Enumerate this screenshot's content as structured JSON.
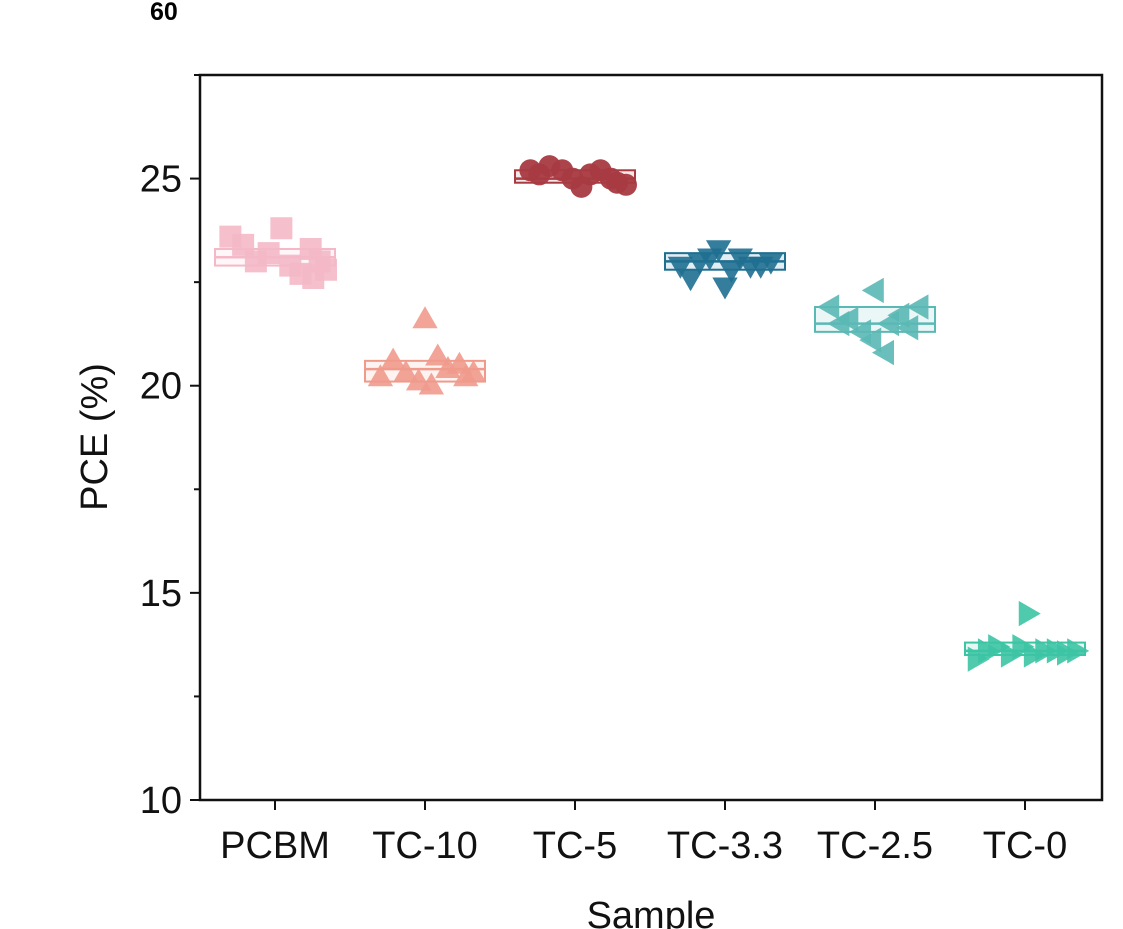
{
  "panel_label": "60",
  "chart_data": {
    "type": "scatter",
    "subtype": "box-with-points",
    "title": "",
    "xlabel": "Sample",
    "ylabel": "PCE (%)",
    "ylim": [
      10,
      27.5
    ],
    "yticks": [
      10,
      15,
      20,
      25
    ],
    "grid": false,
    "legend": "none",
    "categories": [
      "PCBM",
      "TC-10",
      "TC-5",
      "TC-3.3",
      "TC-2.5",
      "TC-0"
    ],
    "series": [
      {
        "category": "PCBM",
        "marker": "square",
        "color": "#f4b8c6",
        "box": {
          "q1": 22.9,
          "median": 23.1,
          "q3": 23.3
        },
        "points": [
          {
            "x": -0.35,
            "y": 23.6
          },
          {
            "x": -0.25,
            "y": 23.4
          },
          {
            "x": -0.15,
            "y": 23.0
          },
          {
            "x": -0.05,
            "y": 23.2
          },
          {
            "x": 0.05,
            "y": 23.8
          },
          {
            "x": 0.12,
            "y": 22.9
          },
          {
            "x": 0.2,
            "y": 22.7
          },
          {
            "x": 0.28,
            "y": 23.3
          },
          {
            "x": 0.35,
            "y": 23.0
          },
          {
            "x": 0.4,
            "y": 22.8
          },
          {
            "x": 0.3,
            "y": 22.6
          }
        ]
      },
      {
        "category": "TC-10",
        "marker": "triangle-up",
        "color": "#f09a8c",
        "box": {
          "q1": 20.1,
          "median": 20.4,
          "q3": 20.6
        },
        "points": [
          {
            "x": -0.35,
            "y": 20.2
          },
          {
            "x": -0.25,
            "y": 20.6
          },
          {
            "x": -0.15,
            "y": 20.3
          },
          {
            "x": -0.05,
            "y": 20.1
          },
          {
            "x": 0.0,
            "y": 21.6
          },
          {
            "x": 0.05,
            "y": 20.0
          },
          {
            "x": 0.1,
            "y": 20.7
          },
          {
            "x": 0.18,
            "y": 20.4
          },
          {
            "x": 0.27,
            "y": 20.5
          },
          {
            "x": 0.32,
            "y": 20.2
          },
          {
            "x": 0.38,
            "y": 20.3
          }
        ]
      },
      {
        "category": "TC-5",
        "marker": "circle",
        "color": "#a83a42",
        "box": {
          "q1": 24.9,
          "median": 25.0,
          "q3": 25.2
        },
        "points": [
          {
            "x": -0.35,
            "y": 25.2
          },
          {
            "x": -0.28,
            "y": 25.1
          },
          {
            "x": -0.2,
            "y": 25.3
          },
          {
            "x": -0.1,
            "y": 25.2
          },
          {
            "x": -0.02,
            "y": 25.0
          },
          {
            "x": 0.05,
            "y": 24.8
          },
          {
            "x": 0.12,
            "y": 25.1
          },
          {
            "x": 0.2,
            "y": 25.2
          },
          {
            "x": 0.28,
            "y": 25.0
          },
          {
            "x": 0.33,
            "y": 24.9
          },
          {
            "x": 0.4,
            "y": 24.85
          }
        ]
      },
      {
        "category": "TC-3.3",
        "marker": "triangle-down",
        "color": "#1f6f91",
        "box": {
          "q1": 22.8,
          "median": 23.0,
          "q3": 23.2
        },
        "points": [
          {
            "x": -0.35,
            "y": 22.9
          },
          {
            "x": -0.27,
            "y": 22.6
          },
          {
            "x": -0.2,
            "y": 23.0
          },
          {
            "x": -0.12,
            "y": 23.1
          },
          {
            "x": -0.05,
            "y": 23.3
          },
          {
            "x": 0.0,
            "y": 22.4
          },
          {
            "x": 0.05,
            "y": 22.8
          },
          {
            "x": 0.12,
            "y": 23.1
          },
          {
            "x": 0.2,
            "y": 22.9
          },
          {
            "x": 0.28,
            "y": 22.9
          },
          {
            "x": 0.36,
            "y": 23.0
          }
        ]
      },
      {
        "category": "TC-2.5",
        "marker": "triangle-left",
        "color": "#5ab8b5",
        "box": {
          "q1": 21.3,
          "median": 21.5,
          "q3": 21.9
        },
        "points": [
          {
            "x": -0.35,
            "y": 21.9
          },
          {
            "x": -0.27,
            "y": 21.5
          },
          {
            "x": -0.2,
            "y": 21.6
          },
          {
            "x": -0.1,
            "y": 21.3
          },
          {
            "x": -0.02,
            "y": 21.1
          },
          {
            "x": 0.0,
            "y": 22.3
          },
          {
            "x": 0.08,
            "y": 20.8
          },
          {
            "x": 0.12,
            "y": 21.5
          },
          {
            "x": 0.2,
            "y": 21.7
          },
          {
            "x": 0.27,
            "y": 21.4
          },
          {
            "x": 0.35,
            "y": 21.9
          }
        ]
      },
      {
        "category": "TC-0",
        "marker": "triangle-right",
        "color": "#3cc4a4",
        "box": {
          "q1": 13.5,
          "median": 13.6,
          "q3": 13.8
        },
        "points": [
          {
            "x": -0.38,
            "y": 13.4
          },
          {
            "x": -0.3,
            "y": 13.6
          },
          {
            "x": -0.22,
            "y": 13.7
          },
          {
            "x": -0.12,
            "y": 13.5
          },
          {
            "x": -0.03,
            "y": 13.7
          },
          {
            "x": 0.02,
            "y": 14.5
          },
          {
            "x": 0.06,
            "y": 13.5
          },
          {
            "x": 0.15,
            "y": 13.6
          },
          {
            "x": 0.24,
            "y": 13.6
          },
          {
            "x": 0.32,
            "y": 13.55
          },
          {
            "x": 0.4,
            "y": 13.6
          }
        ]
      }
    ]
  }
}
